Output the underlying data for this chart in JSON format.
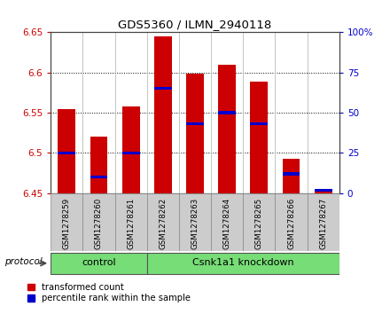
{
  "title": "GDS5360 / ILMN_2940118",
  "samples": [
    "GSM1278259",
    "GSM1278260",
    "GSM1278261",
    "GSM1278262",
    "GSM1278263",
    "GSM1278264",
    "GSM1278265",
    "GSM1278266",
    "GSM1278267"
  ],
  "bar_values": [
    6.555,
    6.52,
    6.558,
    6.645,
    6.598,
    6.61,
    6.589,
    6.493,
    6.455
  ],
  "bar_bottom": 6.45,
  "percentile_ranks": [
    25,
    10,
    25,
    65,
    43,
    50,
    43,
    12,
    2
  ],
  "groups": [
    {
      "label": "control",
      "n": 3
    },
    {
      "label": "Csnk1a1 knockdown",
      "n": 6
    }
  ],
  "ylim_left": [
    6.45,
    6.65
  ],
  "ylim_right": [
    0,
    100
  ],
  "yticks_left": [
    6.45,
    6.5,
    6.55,
    6.6,
    6.65
  ],
  "yticks_right": [
    0,
    25,
    50,
    75,
    100
  ],
  "bar_color": "#cc0000",
  "percentile_color": "#0000cc",
  "group_color": "#77dd77",
  "label_color_left": "#cc0000",
  "label_color_right": "#0000cc",
  "legend_labels": [
    "transformed count",
    "percentile rank within the sample"
  ],
  "protocol_label": "protocol",
  "sample_box_color": "#cccccc",
  "bar_width": 0.55
}
